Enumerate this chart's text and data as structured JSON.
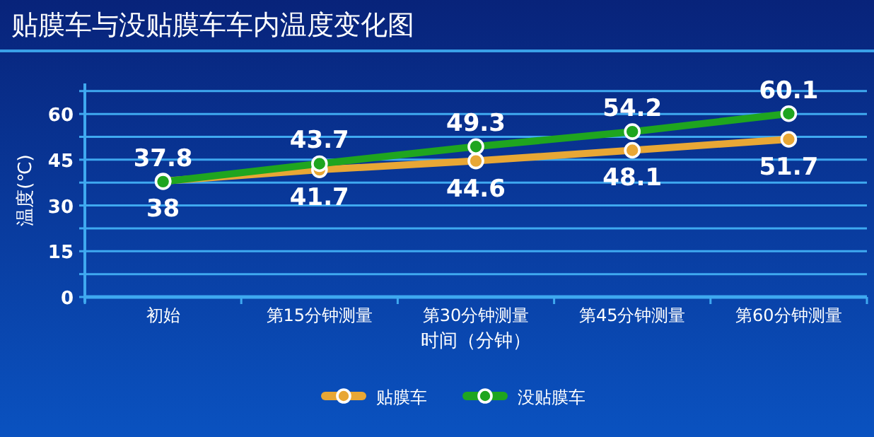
{
  "chart_data": {
    "type": "line",
    "title": "贴膜车与没贴膜车车内温度变化图",
    "xlabel": "时间（分钟）",
    "ylabel": "温度(℃)",
    "categories": [
      "初始",
      "第15分钟测量",
      "第30分钟测量",
      "第45分钟测量",
      "第60分钟测量"
    ],
    "series": [
      {
        "name": "贴膜车",
        "color": "#e8a735",
        "values": [
          38,
          41.7,
          44.6,
          48.1,
          51.7
        ]
      },
      {
        "name": "没贴膜车",
        "color": "#1fa51f",
        "values": [
          37.8,
          43.7,
          49.3,
          54.2,
          60.1
        ]
      }
    ],
    "ylim": [
      0,
      70
    ],
    "yticks": [
      0,
      {
        "value": 7.5,
        "label": null
      },
      15,
      {
        "value": 22.5,
        "label": null
      },
      30,
      {
        "value": 37.5,
        "label": null
      },
      45,
      {
        "value": 52.5,
        "label": null
      },
      60,
      {
        "value": 67.5,
        "label": null
      }
    ],
    "grid": "y",
    "marker": "circle",
    "line_style": "solid",
    "data_labels": true,
    "legend": "bottom"
  }
}
